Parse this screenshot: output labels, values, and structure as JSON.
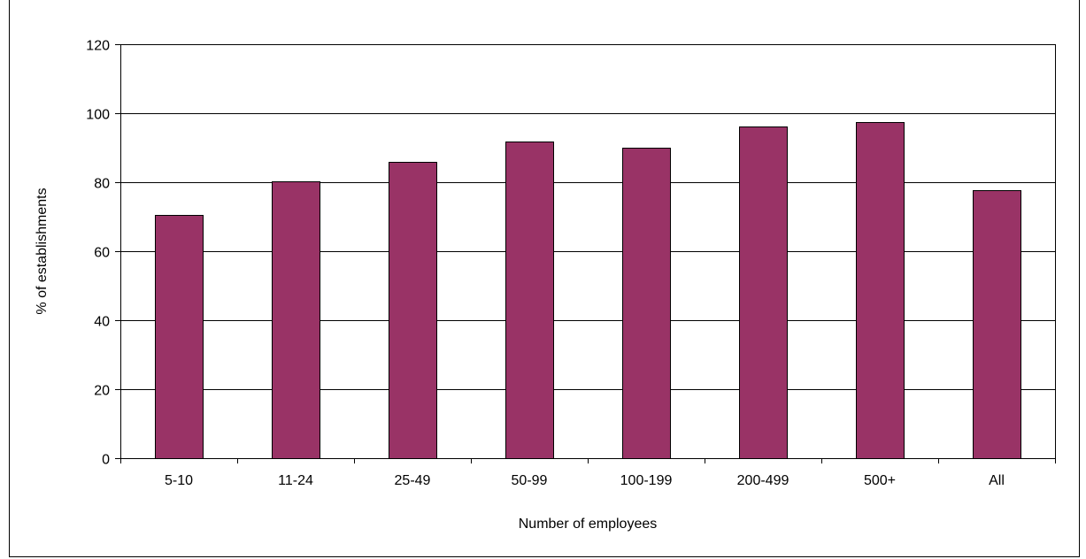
{
  "chart_data": {
    "type": "bar",
    "categories": [
      "5-10",
      "11-24",
      "25-49",
      "50-99",
      "100-199",
      "200-499",
      "500+",
      "All"
    ],
    "values": [
      70.5,
      80.3,
      86.0,
      91.8,
      90.0,
      96.2,
      97.4,
      77.8
    ],
    "title": "",
    "xlabel": "Number of employees",
    "ylabel": "% of establishments",
    "ylim": [
      0,
      120
    ],
    "yticks": [
      0,
      20,
      40,
      60,
      80,
      100,
      120
    ],
    "grid": true,
    "legend": "none",
    "bar_color": "#993366",
    "bar_edge_color": "#000000"
  }
}
